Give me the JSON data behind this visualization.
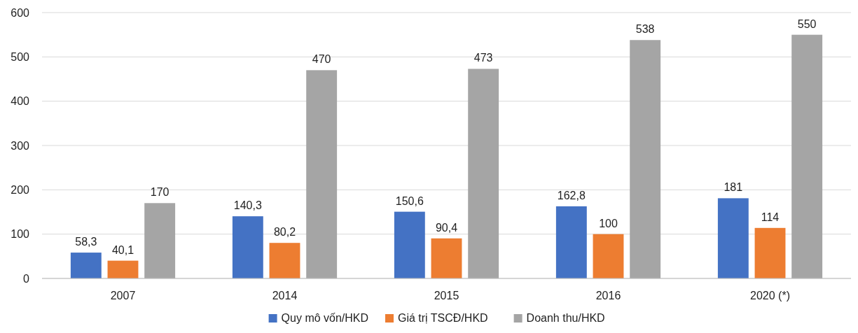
{
  "chart_data": {
    "type": "bar",
    "categories": [
      "2007",
      "2014",
      "2015",
      "2016",
      "2020 (*)"
    ],
    "series": [
      {
        "name": "Quy mô vốn/HKD",
        "color": "#4472c4",
        "values": [
          58.3,
          140.3,
          150.6,
          162.8,
          181
        ],
        "value_labels": [
          "58,3",
          "140,3",
          "150,6",
          "162,8",
          "181"
        ]
      },
      {
        "name": "Giá trị TSCĐ/HKD",
        "color": "#ed7d31",
        "values": [
          40.1,
          80.2,
          90.4,
          100,
          114
        ],
        "value_labels": [
          "40,1",
          "80,2",
          "90,4",
          "100",
          "114"
        ]
      },
      {
        "name": "Doanh thu/HKD",
        "color": "#a5a5a5",
        "values": [
          170,
          470,
          473,
          538,
          550
        ],
        "value_labels": [
          "170",
          "470",
          "473",
          "538",
          "550"
        ]
      }
    ],
    "ylim": [
      0,
      600
    ],
    "yticks": [
      0,
      100,
      200,
      300,
      400,
      500,
      600
    ],
    "grid": "y",
    "legend": "bottom"
  }
}
